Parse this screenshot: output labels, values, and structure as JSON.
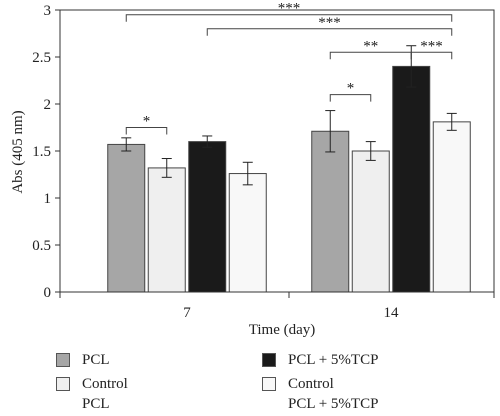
{
  "chart_data": {
    "type": "bar",
    "categories": [
      "7",
      "14"
    ],
    "xlabel": "Time (day)",
    "ylabel": "Abs (405 nm)",
    "ylim": [
      0,
      3
    ],
    "yticks": [
      "0",
      "0.5",
      "1",
      "1.5",
      "2",
      "2.5",
      "3"
    ],
    "series": [
      {
        "name": "PCL",
        "color": "#a6a6a6",
        "values": [
          1.57,
          1.71
        ],
        "errors": [
          0.07,
          0.22
        ]
      },
      {
        "name": "Control\nPCL",
        "color": "#efefef",
        "values": [
          1.32,
          1.5
        ],
        "errors": [
          0.1,
          0.1
        ]
      },
      {
        "name": "PCL + 5%TCP",
        "color": "#1a1a1a",
        "values": [
          1.6,
          2.4
        ],
        "errors": [
          0.06,
          0.22
        ]
      },
      {
        "name": "Control\nPCL + 5%TCP",
        "color": "#f8f8f8",
        "values": [
          1.26,
          1.81
        ],
        "errors": [
          0.12,
          0.09
        ]
      }
    ],
    "significance": [
      {
        "label": "*",
        "from": [
          0,
          0
        ],
        "to": [
          0,
          1
        ],
        "y": 1.75
      },
      {
        "label": "*",
        "from": [
          1,
          0
        ],
        "to": [
          1,
          1
        ],
        "y": 2.1
      },
      {
        "label": "**",
        "from": [
          1,
          0
        ],
        "to": [
          1,
          2
        ],
        "y": 2.55
      },
      {
        "label": "***",
        "from": [
          1,
          2
        ],
        "to": [
          1,
          3
        ],
        "y": 2.55
      },
      {
        "label": "***",
        "from": [
          0,
          2
        ],
        "to": [
          1,
          3
        ],
        "y": 2.8
      },
      {
        "label": "***",
        "from": [
          0,
          0
        ],
        "to": [
          1,
          3
        ],
        "y": 2.95
      }
    ],
    "legend_position": "bottom"
  }
}
